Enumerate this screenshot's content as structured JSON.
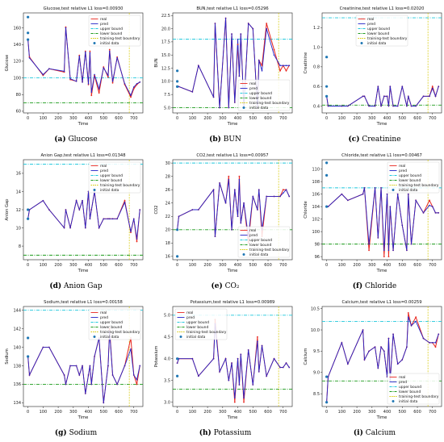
{
  "common": {
    "xlabel": "Time",
    "xticks": [
      0,
      100,
      200,
      300,
      400,
      500,
      600,
      700
    ],
    "xlim": [
      -30,
      760
    ],
    "boundary_x": 670,
    "legend": [
      "real",
      "pred",
      "upper bound",
      "lower bound",
      "training-test boundary",
      "initial data"
    ],
    "colors": {
      "real": "#e8261f",
      "pred": "#2323c8",
      "upper": "#1ec8dc",
      "lower": "#1a9a1a",
      "boundary": "#d6c800",
      "initial": "#1f77b4"
    },
    "times": [
      0,
      10,
      100,
      140,
      240,
      250,
      280,
      320,
      340,
      360,
      380,
      400,
      410,
      420,
      440,
      470,
      500,
      530,
      540,
      560,
      590,
      640,
      680,
      700,
      720,
      740
    ]
  },
  "chart_data": [
    {
      "type": "line",
      "id": "glucose",
      "label_letter": "(a)",
      "caption": "Glucose",
      "title": "Glucose,test relative L1 loss=0.00930",
      "ylabel": "Glucose",
      "ylim": [
        58,
        178
      ],
      "yticks": [
        60,
        80,
        100,
        120,
        140,
        160
      ],
      "upper": 100,
      "lower": 70,
      "legend_pos": "top-right",
      "initial_x": [
        0,
        0,
        0
      ],
      "initial_y": [
        173,
        154,
        146
      ],
      "real": [
        146,
        125,
        103,
        111,
        107,
        161,
        98,
        96,
        127,
        95,
        132,
        92,
        132,
        79,
        103,
        82,
        113,
        101,
        134,
        94,
        125,
        92,
        77,
        87,
        92,
        95
      ],
      "pred": [
        146,
        124,
        104,
        111,
        108,
        160,
        99,
        96,
        126,
        95,
        131,
        93,
        130,
        83,
        104,
        87,
        112,
        103,
        132,
        96,
        124,
        93,
        79,
        89,
        93,
        95
      ]
    },
    {
      "type": "line",
      "id": "bun",
      "label_letter": "(b)",
      "caption": "BUN",
      "title": "BUN,test relative L1 loss=0.05296",
      "ylabel": "BUN",
      "ylim": [
        4,
        23
      ],
      "yticks": [
        5.0,
        7.5,
        10.0,
        12.5,
        15.0,
        17.5,
        20.0,
        22.5
      ],
      "upper": 18,
      "lower": 5,
      "legend_pos": "bottom-right",
      "initial_x": [
        0,
        0,
        0
      ],
      "initial_y": [
        12,
        9,
        10
      ],
      "real": [
        9,
        9,
        8,
        13,
        7,
        21,
        5,
        22,
        5,
        19,
        6,
        17,
        11,
        19,
        5,
        21,
        20,
        5,
        14,
        13,
        21,
        16,
        12,
        13,
        12,
        13
      ],
      "pred": [
        9,
        9,
        8,
        13,
        7,
        21,
        5,
        22,
        5,
        19,
        6,
        18,
        11,
        19,
        5,
        21,
        20,
        5,
        14,
        12,
        20,
        15,
        13,
        13,
        13,
        13
      ]
    },
    {
      "type": "line",
      "id": "creatinine",
      "label_letter": "(c)",
      "caption": "Creatinine",
      "title": "Creatinine,test relative L1 loss=0.02020",
      "ylabel": "Creatinine",
      "ylim": [
        0.33,
        1.35
      ],
      "yticks": [
        0.4,
        0.6,
        0.8,
        1.0,
        1.2
      ],
      "upper": 1.3,
      "lower": 0.41,
      "legend_pos": "top-center",
      "initial_x": [
        0,
        0,
        0
      ],
      "initial_y": [
        0.9,
        0.6,
        0.5
      ],
      "real": [
        0.5,
        0.4,
        0.4,
        0.4,
        0.5,
        0.5,
        0.4,
        0.4,
        0.6,
        0.4,
        0.5,
        0.5,
        0.4,
        0.6,
        0.4,
        0.4,
        0.6,
        0.4,
        0.5,
        0.4,
        0.4,
        0.5,
        0.5,
        0.6,
        0.5,
        0.6
      ],
      "pred": [
        0.5,
        0.4,
        0.4,
        0.4,
        0.5,
        0.5,
        0.4,
        0.4,
        0.6,
        0.4,
        0.5,
        0.5,
        0.4,
        0.6,
        0.4,
        0.4,
        0.6,
        0.4,
        0.5,
        0.4,
        0.4,
        0.5,
        0.5,
        0.58,
        0.5,
        0.6
      ]
    },
    {
      "type": "line",
      "id": "aniongap",
      "label_letter": "(d)",
      "caption": "Anion Gap",
      "title": "Anion Gap,test relative L1 loss=0.01348",
      "ylabel": "Anion Gap",
      "ylim": [
        6.5,
        17.5
      ],
      "yticks": [
        8,
        10,
        12,
        14,
        16
      ],
      "upper": 17,
      "lower": 7,
      "legend_pos": "top-right",
      "initial_x": [
        0,
        0
      ],
      "initial_y": [
        12,
        11
      ],
      "real": [
        11,
        12,
        13,
        12,
        10,
        12,
        10,
        13,
        12,
        13,
        10,
        14,
        11,
        12,
        14,
        10,
        11,
        11,
        11,
        11,
        11,
        13,
        9.5,
        11,
        8.5,
        12
      ],
      "pred": [
        11,
        12,
        13,
        12,
        10,
        12,
        10,
        13,
        12,
        13,
        10,
        14,
        11,
        12,
        14,
        10,
        11,
        11,
        11,
        11,
        11,
        12.8,
        9.6,
        11,
        8.8,
        12
      ]
    },
    {
      "type": "line",
      "id": "co2",
      "label_letter": "(e)",
      "caption": "CO₂",
      "title": "CO2,test relative L1 loss=0.00957",
      "ylabel": "CO2",
      "ylim": [
        15.5,
        30.5
      ],
      "yticks": [
        16,
        18,
        20,
        22,
        24,
        26,
        28,
        30
      ],
      "upper": 30,
      "lower": 20,
      "legend_pos": "bottom-right",
      "initial_x": [
        0,
        0
      ],
      "initial_y": [
        20,
        16
      ],
      "real": [
        20,
        22,
        23,
        23,
        26,
        19,
        27,
        24,
        28,
        20,
        26,
        22,
        28,
        21,
        24,
        18,
        25,
        23,
        26,
        19,
        25,
        25,
        25,
        26,
        26,
        25
      ],
      "pred": [
        20,
        22,
        23,
        23,
        26,
        19,
        27,
        24,
        27.5,
        20,
        26,
        22,
        27.5,
        21,
        24,
        19,
        25,
        23,
        26,
        20,
        25,
        25,
        25,
        25.5,
        26,
        25
      ]
    },
    {
      "type": "line",
      "id": "chloride",
      "label_letter": "(f)",
      "caption": "Chloride",
      "title": "Chloride,test relative L1 loss=0.00467",
      "ylabel": "Chloride",
      "ylim": [
        95.5,
        111.5
      ],
      "yticks": [
        96,
        98,
        100,
        102,
        104,
        106,
        108,
        110
      ],
      "upper": 107,
      "lower": 98,
      "legend_pos": "top-right",
      "initial_x": [
        0,
        0,
        0
      ],
      "initial_y": [
        111,
        109,
        104
      ],
      "real": [
        104,
        104,
        106,
        105,
        106,
        107,
        97,
        107,
        99,
        107,
        96,
        106,
        96,
        104,
        97,
        106,
        101,
        97,
        106,
        98,
        105,
        103,
        105,
        104,
        103,
        103
      ],
      "pred": [
        104,
        104,
        106,
        105,
        106,
        107,
        98,
        107,
        99,
        107,
        97,
        106,
        97,
        104,
        97,
        106,
        101,
        97,
        106,
        98,
        105,
        103,
        104.2,
        104,
        103,
        103
      ]
    },
    {
      "type": "line",
      "id": "sodium",
      "label_letter": "(g)",
      "caption": "Sodium",
      "title": "Sodium,test relative L1 loss=0.00158",
      "ylabel": "Sodium",
      "ylim": [
        133.6,
        144.4
      ],
      "yticks": [
        134,
        136,
        138,
        140,
        142,
        144
      ],
      "upper": 144,
      "lower": 136,
      "legend_pos": "top-right",
      "initial_x": [
        0,
        0
      ],
      "initial_y": [
        141,
        139
      ],
      "real": [
        139,
        137,
        140,
        140,
        137,
        136,
        138,
        138,
        137,
        138,
        135,
        137,
        138,
        136,
        139,
        141,
        134,
        138,
        142,
        137,
        136,
        138,
        141,
        137,
        136,
        138
      ],
      "pred": [
        139,
        137,
        140,
        140,
        137,
        136,
        138,
        138,
        137,
        138,
        135,
        137,
        138,
        136,
        139,
        141,
        134,
        138,
        141.7,
        137,
        136,
        138,
        139.8,
        137,
        136.5,
        138
      ]
    },
    {
      "type": "line",
      "id": "potassium",
      "label_letter": "(h)",
      "caption": "Potassium",
      "title": "Potassium,test relative L1 loss=0.00989",
      "ylabel": "Potassium",
      "ylim": [
        2.9,
        5.2
      ],
      "yticks": [
        3.0,
        3.5,
        4.0,
        4.5,
        5.0
      ],
      "upper": 5.0,
      "lower": 3.3,
      "legend_pos": "top-left",
      "initial_x": [
        0,
        0
      ],
      "initial_y": [
        4.0,
        3.6
      ],
      "real": [
        3.9,
        4.0,
        4.0,
        3.6,
        4.0,
        4.9,
        3.7,
        4.0,
        3.5,
        3.9,
        3.0,
        4.0,
        3.4,
        4.1,
        3.0,
        4.2,
        3.4,
        4.5,
        3.7,
        4.3,
        3.6,
        4.0,
        3.8,
        3.8,
        3.9,
        3.8
      ],
      "pred": [
        3.9,
        4.0,
        4.0,
        3.6,
        4.0,
        4.8,
        3.7,
        4.0,
        3.5,
        3.9,
        3.1,
        4.0,
        3.4,
        4.1,
        3.1,
        4.2,
        3.4,
        4.4,
        3.7,
        4.3,
        3.6,
        4.0,
        3.8,
        3.8,
        3.9,
        3.8
      ]
    },
    {
      "type": "line",
      "id": "calcium",
      "label_letter": "(i)",
      "caption": "Calcium",
      "title": "Calcium,test relative L1 loss=0.00259",
      "ylabel": "Calcium",
      "ylim": [
        8.2,
        10.55
      ],
      "yticks": [
        8.5,
        9.0,
        9.5,
        10.0,
        10.5
      ],
      "upper": 10.2,
      "lower": 8.8,
      "legend_pos": "bottom-right",
      "initial_x": [
        0,
        0
      ],
      "initial_y": [
        8.9,
        8.3
      ],
      "real": [
        8.3,
        8.9,
        9.7,
        9.2,
        10.0,
        9.3,
        9.5,
        9.6,
        9.1,
        9.6,
        9.5,
        8.9,
        9.8,
        8.8,
        9.9,
        9.2,
        9.3,
        9.6,
        10.4,
        10.1,
        10.3,
        9.8,
        9.7,
        9.7,
        9.6,
        9.9
      ],
      "pred": [
        8.3,
        8.9,
        9.7,
        9.2,
        10.0,
        9.3,
        9.5,
        9.6,
        9.1,
        9.6,
        9.5,
        8.9,
        9.8,
        8.8,
        9.9,
        9.2,
        9.3,
        9.6,
        10.3,
        10.1,
        10.2,
        9.8,
        9.7,
        9.7,
        9.7,
        9.9
      ]
    }
  ]
}
